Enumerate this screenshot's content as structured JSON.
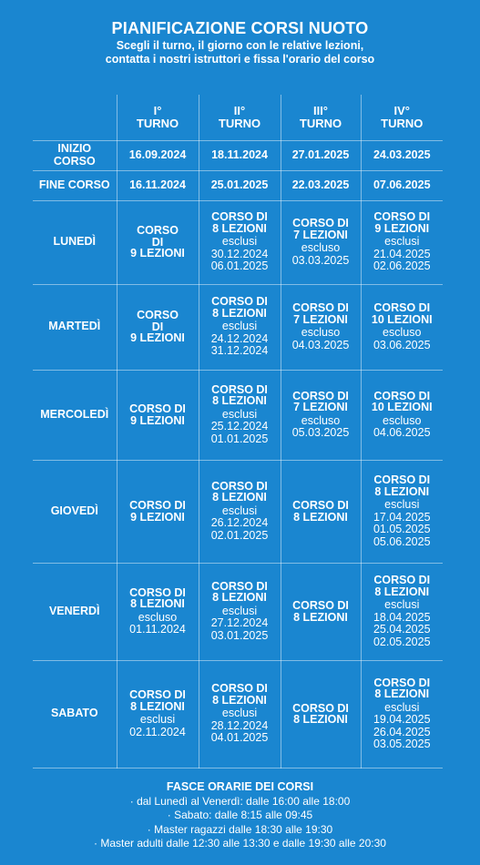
{
  "header": {
    "title": "PIANIFICAZIONE CORSI NUOTO",
    "subtitle_line1": "Scegli il turno, il giorno con le relative lezioni,",
    "subtitle_line2": "contatta i nostri istruttori e fissa l'orario del corso"
  },
  "turni": [
    {
      "line1": "I°",
      "line2": "TURNO"
    },
    {
      "line1": "II°",
      "line2": "TURNO"
    },
    {
      "line1": "III°",
      "line2": "TURNO"
    },
    {
      "line1": "IV°",
      "line2": "TURNO"
    }
  ],
  "inizio": {
    "label_line1": "INIZIO",
    "label_line2": "CORSO",
    "dates": [
      "16.09.2024",
      "18.11.2024",
      "27.01.2025",
      "24.03.2025"
    ]
  },
  "fine": {
    "label": "FINE CORSO",
    "dates": [
      "16.11.2024",
      "25.01.2025",
      "22.03.2025",
      "07.06.2025"
    ]
  },
  "days": [
    {
      "label": "LUNEDÌ",
      "cells": [
        {
          "title": [
            "CORSO",
            "DI",
            "9 LEZIONI"
          ],
          "note": "",
          "dates": []
        },
        {
          "title": [
            "CORSO DI",
            "8 LEZIONI"
          ],
          "note": "esclusi",
          "dates": [
            "30.12.2024",
            "06.01.2025"
          ]
        },
        {
          "title": [
            "CORSO DI",
            "7 LEZIONI"
          ],
          "note": "escluso",
          "dates": [
            "03.03.2025"
          ]
        },
        {
          "title": [
            "CORSO DI",
            "9 LEZIONI"
          ],
          "note": "esclusi",
          "dates": [
            "21.04.2025",
            "02.06.2025"
          ]
        }
      ]
    },
    {
      "label": "MARTEDÌ",
      "cells": [
        {
          "title": [
            "CORSO",
            "DI",
            "9 LEZIONI"
          ],
          "note": "",
          "dates": []
        },
        {
          "title": [
            "CORSO DI",
            "8 LEZIONI"
          ],
          "note": "esclusi",
          "dates": [
            "24.12.2024",
            "31.12.2024"
          ]
        },
        {
          "title": [
            "CORSO DI",
            "7 LEZIONI"
          ],
          "note": "escluso",
          "dates": [
            "04.03.2025"
          ]
        },
        {
          "title": [
            "CORSO DI",
            "10 LEZIONI"
          ],
          "note": "escluso",
          "dates": [
            "03.06.2025"
          ]
        }
      ]
    },
    {
      "label": "MERCOLEDÌ",
      "cells": [
        {
          "title": [
            "CORSO DI",
            "9 LEZIONI"
          ],
          "note": "",
          "dates": []
        },
        {
          "title": [
            "CORSO DI",
            "8 LEZIONI"
          ],
          "note": "esclusi",
          "dates": [
            "25.12.2024",
            "01.01.2025"
          ]
        },
        {
          "title": [
            "CORSO DI",
            "7 LEZIONI"
          ],
          "note": "escluso",
          "dates": [
            "05.03.2025"
          ]
        },
        {
          "title": [
            "CORSO DI",
            "10 LEZIONI"
          ],
          "note": "escluso",
          "dates": [
            "04.06.2025"
          ]
        }
      ]
    },
    {
      "label": "GIOVEDÌ",
      "cells": [
        {
          "title": [
            "CORSO DI",
            "9 LEZIONI"
          ],
          "note": "",
          "dates": []
        },
        {
          "title": [
            "CORSO DI",
            "8 LEZIONI"
          ],
          "note": "esclusi",
          "dates": [
            "26.12.2024",
            "02.01.2025"
          ]
        },
        {
          "title": [
            "CORSO DI",
            "8 LEZIONI"
          ],
          "note": "",
          "dates": []
        },
        {
          "title": [
            "CORSO DI",
            "8 LEZIONI"
          ],
          "note": "esclusi",
          "dates": [
            "17.04.2025",
            "01.05.2025",
            "05.06.2025"
          ]
        }
      ]
    },
    {
      "label": "VENERDÌ",
      "cells": [
        {
          "title": [
            "CORSO DI",
            "8 LEZIONI"
          ],
          "note": "escluso",
          "dates": [
            "01.11.2024"
          ]
        },
        {
          "title": [
            "CORSO DI",
            "8 LEZIONI"
          ],
          "note": "esclusi",
          "dates": [
            "27.12.2024",
            "03.01.2025"
          ]
        },
        {
          "title": [
            "CORSO DI",
            "8 LEZIONI"
          ],
          "note": "",
          "dates": []
        },
        {
          "title": [
            "CORSO DI",
            "8 LEZIONI"
          ],
          "note": "esclusi",
          "dates": [
            "18.04.2025",
            "25.04.2025",
            "02.05.2025"
          ]
        }
      ]
    },
    {
      "label": "SABATO",
      "cells": [
        {
          "title": [
            "CORSO DI",
            "8 LEZIONI"
          ],
          "note": "esclusi",
          "dates": [
            "02.11.2024"
          ]
        },
        {
          "title": [
            "CORSO DI",
            "8 LEZIONI"
          ],
          "note": "esclusi",
          "dates": [
            "28.12.2024",
            "04.01.2025"
          ]
        },
        {
          "title": [
            "CORSO DI",
            "8 LEZIONI"
          ],
          "note": "",
          "dates": []
        },
        {
          "title": [
            "CORSO DI",
            "8 LEZIONI"
          ],
          "note": "esclusi",
          "dates": [
            "19.04.2025",
            "26.04.2025",
            "03.05.2025"
          ]
        }
      ]
    }
  ],
  "footer": {
    "heading": "FASCE ORARIE DEI CORSI",
    "items": [
      "· dal Lunedì al Venerdì: dalle 16:00 alle 18:00",
      "· Sabato: dalle 8:15 alle 09:45",
      "· Master ragazzi dalle 18:30 alle 19:30",
      "· Master adulti dalle 12:30 alle 13:30 e dalle 19:30 alle 20:30"
    ]
  }
}
